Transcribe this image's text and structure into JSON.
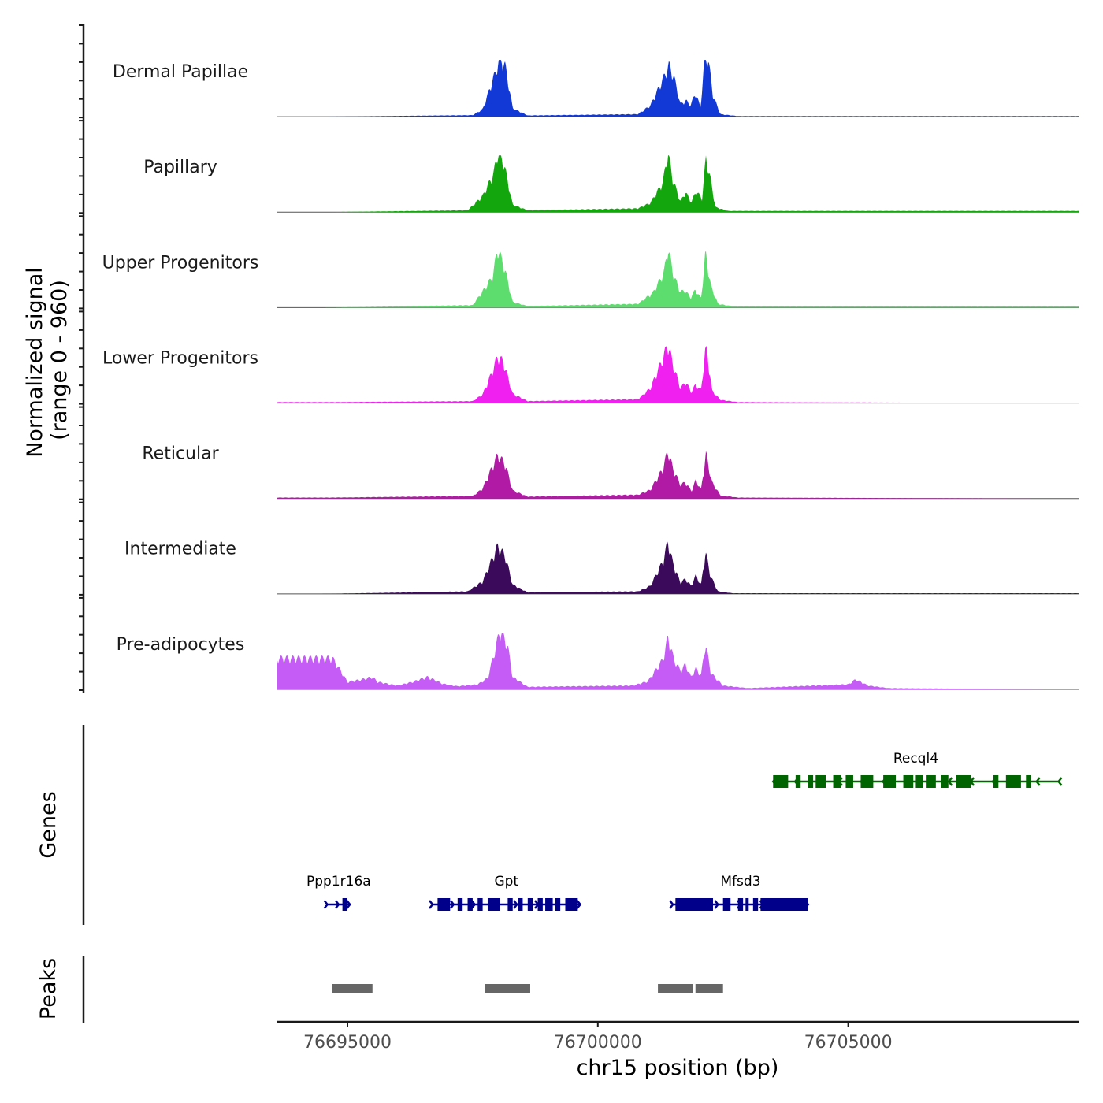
{
  "chart_data": {
    "type": "area",
    "subtype": "genome-coverage-track",
    "region": {
      "chrom": "chr15",
      "start": 76693600,
      "end": 76709600
    },
    "signal_track": {
      "ylabel_line1": "Normalized signal",
      "ylabel_line2": "(range 0 - 960)",
      "ylim": [
        0,
        960
      ],
      "peak_centers": [
        76698000,
        76701400,
        76702200
      ],
      "series": [
        {
          "name": "Dermal Papillae",
          "color": "#1238d6",
          "profile": [
            [
              76694500,
              0
            ],
            [
              76697500,
              25
            ],
            [
              76697700,
              120
            ],
            [
              76697950,
              700
            ],
            [
              76698050,
              960
            ],
            [
              76698150,
              820
            ],
            [
              76698300,
              140
            ],
            [
              76698600,
              20
            ],
            [
              76700800,
              40
            ],
            [
              76701050,
              180
            ],
            [
              76701300,
              600
            ],
            [
              76701420,
              830
            ],
            [
              76701520,
              640
            ],
            [
              76701650,
              200
            ],
            [
              76701760,
              260
            ],
            [
              76701850,
              180
            ],
            [
              76701950,
              380
            ],
            [
              76702050,
              150
            ],
            [
              76702130,
              900
            ],
            [
              76702200,
              960
            ],
            [
              76702300,
              340
            ],
            [
              76702450,
              40
            ],
            [
              76702800,
              10
            ]
          ]
        },
        {
          "name": "Papillary",
          "color": "#14a70d",
          "profile": [
            [
              76694500,
              0
            ],
            [
              76697400,
              30
            ],
            [
              76697700,
              260
            ],
            [
              76697920,
              620
            ],
            [
              76698000,
              960
            ],
            [
              76698120,
              800
            ],
            [
              76698300,
              120
            ],
            [
              76698600,
              30
            ],
            [
              76700800,
              60
            ],
            [
              76701050,
              150
            ],
            [
              76701300,
              480
            ],
            [
              76701400,
              960
            ],
            [
              76701500,
              520
            ],
            [
              76701650,
              170
            ],
            [
              76701750,
              320
            ],
            [
              76701870,
              160
            ],
            [
              76701960,
              340
            ],
            [
              76702080,
              220
            ],
            [
              76702160,
              880
            ],
            [
              76702250,
              530
            ],
            [
              76702350,
              80
            ],
            [
              76702600,
              20
            ]
          ]
        },
        {
          "name": "Upper Progenitors",
          "color": "#5ddd6d",
          "profile": [
            [
              76694500,
              0
            ],
            [
              76697500,
              40
            ],
            [
              76697700,
              260
            ],
            [
              76697900,
              500
            ],
            [
              76698000,
              960
            ],
            [
              76698150,
              600
            ],
            [
              76698300,
              90
            ],
            [
              76698600,
              25
            ],
            [
              76700800,
              60
            ],
            [
              76701100,
              240
            ],
            [
              76701320,
              560
            ],
            [
              76701400,
              960
            ],
            [
              76701520,
              500
            ],
            [
              76701650,
              260
            ],
            [
              76701750,
              270
            ],
            [
              76701850,
              160
            ],
            [
              76701950,
              290
            ],
            [
              76702060,
              140
            ],
            [
              76702150,
              880
            ],
            [
              76702260,
              340
            ],
            [
              76702400,
              60
            ],
            [
              76702700,
              20
            ]
          ]
        },
        {
          "name": "Lower Progenitors",
          "color": "#f020f0",
          "profile": [
            [
              76694700,
              15
            ],
            [
              76697500,
              30
            ],
            [
              76697700,
              140
            ],
            [
              76697900,
              520
            ],
            [
              76698000,
              760
            ],
            [
              76698120,
              650
            ],
            [
              76698300,
              150
            ],
            [
              76698600,
              30
            ],
            [
              76700800,
              60
            ],
            [
              76701050,
              240
            ],
            [
              76701300,
              720
            ],
            [
              76701400,
              960
            ],
            [
              76701500,
              620
            ],
            [
              76701650,
              240
            ],
            [
              76701760,
              340
            ],
            [
              76701860,
              180
            ],
            [
              76701960,
              300
            ],
            [
              76702060,
              200
            ],
            [
              76702160,
              960
            ],
            [
              76702280,
              200
            ],
            [
              76702450,
              50
            ],
            [
              76702800,
              15
            ],
            [
              76709000,
              0
            ]
          ]
        },
        {
          "name": "Reticular",
          "color": "#b01aa5",
          "profile": [
            [
              76694700,
              15
            ],
            [
              76697500,
              40
            ],
            [
              76697700,
              160
            ],
            [
              76697900,
              520
            ],
            [
              76698000,
              700
            ],
            [
              76698150,
              560
            ],
            [
              76698300,
              130
            ],
            [
              76698600,
              30
            ],
            [
              76700800,
              60
            ],
            [
              76701050,
              140
            ],
            [
              76701300,
              480
            ],
            [
              76701400,
              770
            ],
            [
              76701500,
              480
            ],
            [
              76701650,
              220
            ],
            [
              76701750,
              260
            ],
            [
              76701870,
              120
            ],
            [
              76701960,
              300
            ],
            [
              76702060,
              140
            ],
            [
              76702160,
              720
            ],
            [
              76702280,
              260
            ],
            [
              76702450,
              50
            ],
            [
              76702800,
              15
            ],
            [
              76709000,
              0
            ]
          ]
        },
        {
          "name": "Intermediate",
          "color": "#3b0a5a",
          "profile": [
            [
              76694500,
              0
            ],
            [
              76697400,
              40
            ],
            [
              76697700,
              200
            ],
            [
              76697900,
              580
            ],
            [
              76698000,
              770
            ],
            [
              76698150,
              610
            ],
            [
              76698300,
              150
            ],
            [
              76698600,
              25
            ],
            [
              76700800,
              40
            ],
            [
              76701050,
              130
            ],
            [
              76701300,
              520
            ],
            [
              76701400,
              840
            ],
            [
              76701500,
              490
            ],
            [
              76701650,
              180
            ],
            [
              76701750,
              240
            ],
            [
              76701860,
              130
            ],
            [
              76701960,
              300
            ],
            [
              76702060,
              140
            ],
            [
              76702150,
              680
            ],
            [
              76702250,
              290
            ],
            [
              76702400,
              40
            ],
            [
              76702700,
              10
            ]
          ]
        },
        {
          "name": "Pre-adipocytes",
          "color": "#c45cf5",
          "profile": [
            [
              76694700,
              500
            ],
            [
              76694850,
              320
            ],
            [
              76695000,
              120
            ],
            [
              76695300,
              160
            ],
            [
              76695500,
              200
            ],
            [
              76695600,
              120
            ],
            [
              76696000,
              60
            ],
            [
              76696300,
              120
            ],
            [
              76696600,
              200
            ],
            [
              76696900,
              90
            ],
            [
              76697200,
              50
            ],
            [
              76697600,
              80
            ],
            [
              76697800,
              180
            ],
            [
              76697950,
              640
            ],
            [
              76698050,
              960
            ],
            [
              76698200,
              700
            ],
            [
              76698300,
              200
            ],
            [
              76698600,
              40
            ],
            [
              76700700,
              60
            ],
            [
              76701000,
              130
            ],
            [
              76701300,
              480
            ],
            [
              76701400,
              840
            ],
            [
              76701520,
              480
            ],
            [
              76701650,
              300
            ],
            [
              76701750,
              400
            ],
            [
              76701860,
              200
            ],
            [
              76701960,
              340
            ],
            [
              76702060,
              220
            ],
            [
              76702150,
              740
            ],
            [
              76702260,
              260
            ],
            [
              76702500,
              60
            ],
            [
              76703000,
              20
            ],
            [
              76705000,
              80
            ],
            [
              76705150,
              160
            ],
            [
              76705400,
              60
            ],
            [
              76705800,
              20
            ],
            [
              76709000,
              0
            ]
          ]
        }
      ]
    },
    "genes_track": {
      "ylabel": "Genes",
      "genes": [
        {
          "name": "Recql4",
          "strand": "-",
          "start": 76703500,
          "end": 76709200,
          "row": 1,
          "color": "#006400",
          "exons": [
            [
              76703500,
              76703800
            ],
            [
              76703950,
              76704050
            ],
            [
              76704200,
              76704300
            ],
            [
              76704350,
              76704550
            ],
            [
              76704700,
              76704850
            ],
            [
              76704950,
              76705100
            ],
            [
              76705250,
              76705500
            ],
            [
              76705700,
              76705950
            ],
            [
              76706100,
              76706300
            ],
            [
              76706350,
              76706500
            ],
            [
              76706550,
              76706750
            ],
            [
              76706850,
              76707000
            ],
            [
              76707150,
              76707450
            ],
            [
              76707900,
              76708000
            ],
            [
              76708150,
              76708450
            ],
            [
              76708550,
              76708650
            ]
          ]
        },
        {
          "name": "Ppp1r16a",
          "strand": "+",
          "start": 76694600,
          "end": 76695050,
          "row": 0,
          "color": "#00008b",
          "exons": [
            [
              76694900,
              76695000
            ]
          ]
        },
        {
          "name": "Gpt",
          "strand": "+",
          "start": 76696700,
          "end": 76699650,
          "row": 0,
          "color": "#00008b",
          "exons": [
            [
              76696800,
              76697050
            ],
            [
              76697200,
              76697300
            ],
            [
              76697400,
              76697500
            ],
            [
              76697600,
              76697700
            ],
            [
              76697800,
              76698050
            ],
            [
              76698200,
              76698300
            ],
            [
              76698400,
              76698500
            ],
            [
              76698600,
              76698700
            ],
            [
              76698800,
              76698900
            ],
            [
              76698950,
              76699100
            ],
            [
              76699150,
              76699250
            ],
            [
              76699350,
              76699600
            ]
          ]
        },
        {
          "name": "Mfsd3",
          "strand": "+",
          "start": 76701500,
          "end": 76704200,
          "row": 0,
          "color": "#00008b",
          "exons": [
            [
              76701550,
              76702300
            ],
            [
              76702500,
              76702650
            ],
            [
              76702800,
              76702900
            ],
            [
              76702950,
              76703000
            ],
            [
              76703100,
              76703200
            ],
            [
              76703250,
              76704200
            ]
          ]
        }
      ]
    },
    "peaks_track": {
      "ylabel": "Peaks",
      "color": "#666666",
      "peaks": [
        [
          76694700,
          76695500
        ],
        [
          76697750,
          76698650
        ],
        [
          76701200,
          76701900
        ],
        [
          76701950,
          76702500
        ]
      ]
    },
    "xaxis": {
      "xlabel": "chr15 position (bp)",
      "ticks": [
        76695000,
        76700000,
        76705000
      ],
      "tick_labels": [
        "76695000",
        "76700000",
        "76705000"
      ]
    }
  }
}
